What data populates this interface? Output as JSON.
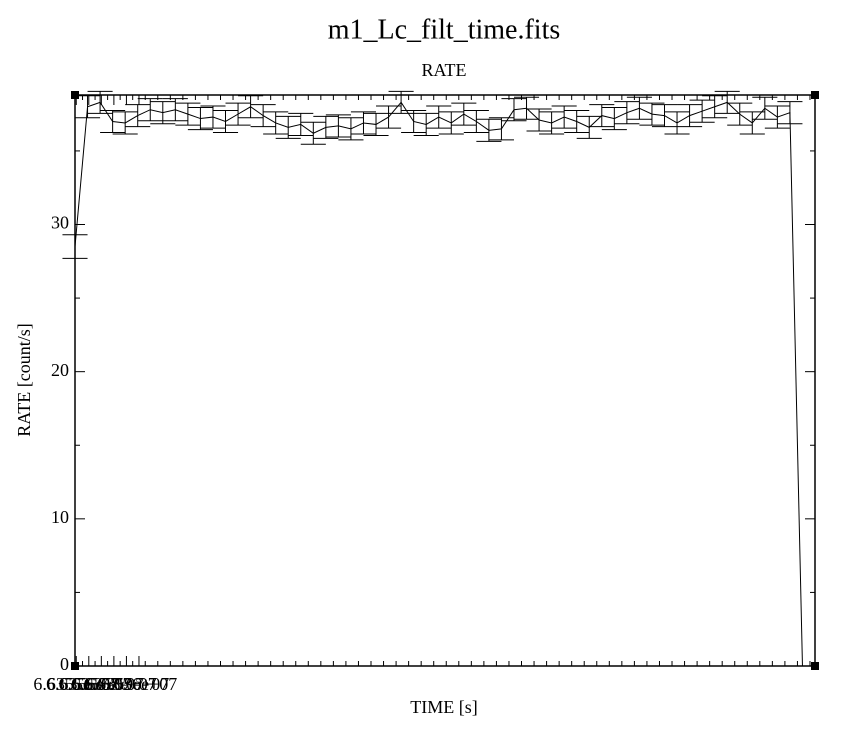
{
  "chart_data": {
    "type": "line",
    "title": "m1_Lc_filt_time.fits",
    "subtitle": "RATE",
    "x_label": "TIME [s]",
    "y_label": "RATE [count/s]",
    "x": [
      66354900,
      66355900,
      66356900,
      66357900,
      66358900,
      66359900,
      66360900,
      66361900,
      66362900,
      66363900,
      66364900,
      66365900,
      66366900,
      66367900,
      66368900,
      66369900,
      66370900,
      66371900,
      66372900,
      66373900,
      66374900,
      66375900,
      66376900,
      66377900,
      66378900,
      66379900,
      66380900,
      66381900,
      66382900,
      66383900,
      66384900,
      66385900,
      66386900,
      66387900,
      66388900,
      66389900,
      66390900,
      66391900,
      66392900,
      66393900,
      66394900,
      66395900,
      66396900,
      66397900,
      66398900,
      66399900,
      66400900,
      66401900,
      66402900,
      66403900,
      66404900,
      66405900,
      66406900,
      66407900,
      66408900,
      66409900,
      66410900,
      66411900,
      66412900
    ],
    "series": [
      {
        "name": "RATE",
        "color": "#000000",
        "values": [
          28.5,
          38.0,
          38.3,
          37.0,
          36.9,
          37.4,
          37.8,
          37.6,
          37.8,
          37.5,
          37.2,
          37.3,
          37.0,
          37.5,
          38.0,
          37.4,
          36.9,
          36.6,
          36.8,
          36.2,
          36.6,
          36.7,
          36.5,
          36.9,
          36.8,
          37.3,
          38.3,
          37.0,
          36.8,
          37.3,
          36.9,
          37.5,
          37.0,
          36.4,
          36.5,
          37.8,
          37.9,
          37.1,
          36.9,
          37.3,
          37.0,
          36.6,
          37.4,
          37.2,
          37.6,
          37.9,
          37.5,
          37.4,
          36.9,
          37.4,
          37.7,
          38.0,
          38.3,
          37.5,
          36.9,
          37.9,
          37.3,
          37.6,
          0
        ],
        "errors": [
          0.8,
          0.75,
          0.75,
          0.75,
          0.75,
          0.75,
          0.75,
          0.75,
          0.75,
          0.75,
          0.75,
          0.75,
          0.75,
          0.75,
          0.75,
          0.75,
          0.75,
          0.75,
          0.75,
          0.75,
          0.75,
          0.75,
          0.75,
          0.75,
          0.75,
          0.75,
          0.75,
          0.75,
          0.75,
          0.75,
          0.75,
          0.75,
          0.75,
          0.75,
          0.75,
          0.75,
          0.75,
          0.75,
          0.75,
          0.75,
          0.75,
          0.75,
          0.75,
          0.75,
          0.75,
          0.75,
          0.75,
          0.75,
          0.75,
          0.75,
          0.75,
          0.75,
          0.75,
          0.75,
          0.75,
          0.75,
          0.75,
          0.75,
          0
        ]
      }
    ],
    "xlim": [
      66354900,
      66413900
    ],
    "ylim": [
      0,
      38.8
    ],
    "xticks": [
      {
        "value": 66355000,
        "label": "6.6355e+07"
      },
      {
        "value": 66356000,
        "label": "6.6356e+07"
      },
      {
        "value": 66357000,
        "label": "6.6357e+07"
      },
      {
        "value": 66358000,
        "label": "6.6358e+07"
      },
      {
        "value": 66359000,
        "label": "6.6359e+07"
      },
      {
        "value": 66360000,
        "label": "6.636e+07"
      }
    ],
    "yticks": [
      0,
      10,
      20,
      30
    ],
    "grid": false
  }
}
